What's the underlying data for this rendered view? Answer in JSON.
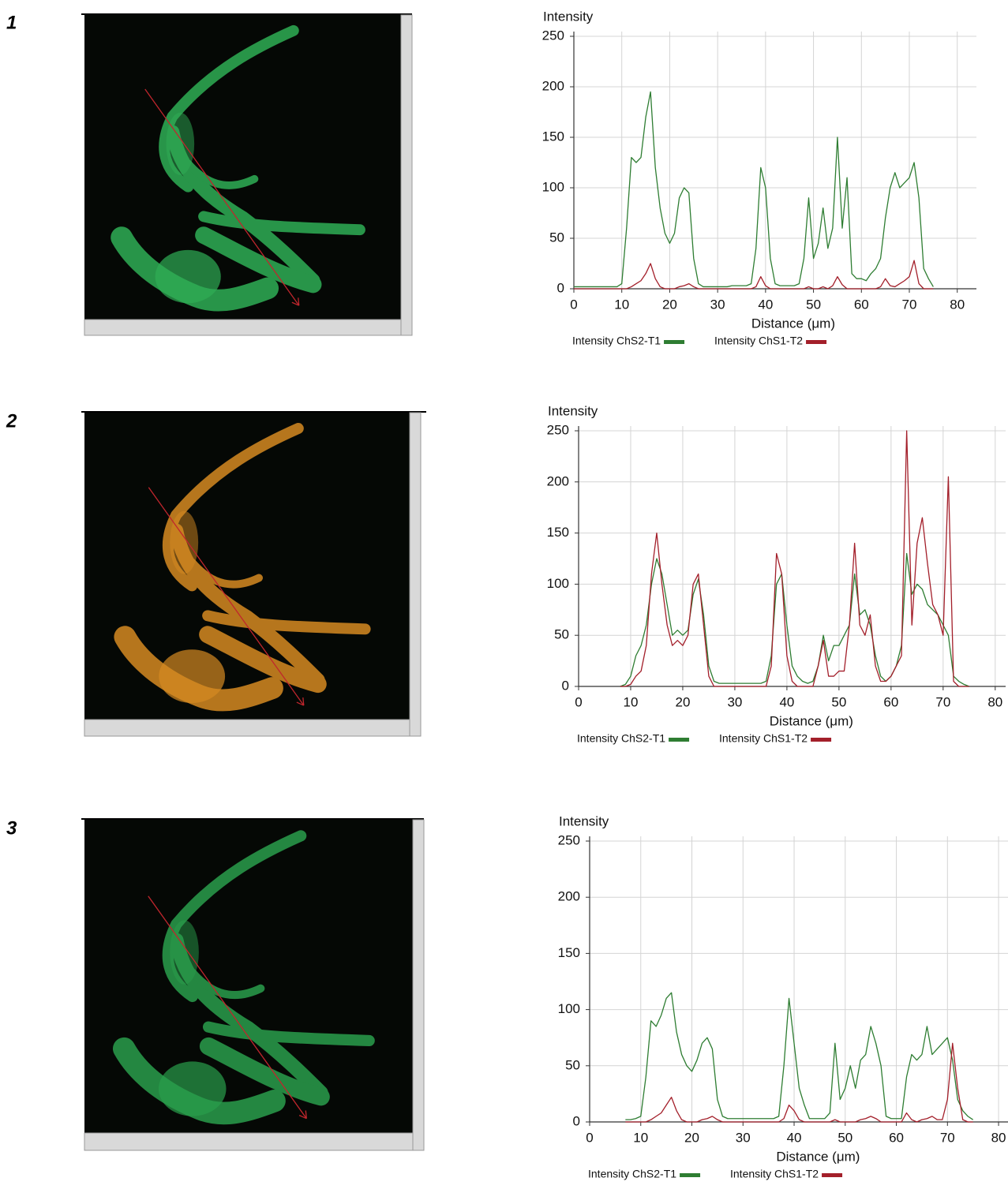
{
  "chart_data": [
    {
      "type": "line",
      "panel": "1",
      "ylabel": "Intensity",
      "xlabel": "Distance (μm)",
      "grid": true,
      "xlim": [
        0,
        84
      ],
      "ylim": [
        0,
        250
      ],
      "xticks": [
        0,
        10,
        20,
        30,
        40,
        50,
        60,
        70,
        80
      ],
      "yticks": [
        0,
        50,
        100,
        150,
        200,
        250
      ],
      "x": [
        0,
        1,
        2,
        3,
        4,
        5,
        6,
        7,
        8,
        9,
        10,
        11,
        12,
        13,
        14,
        15,
        16,
        17,
        18,
        19,
        20,
        21,
        22,
        23,
        24,
        25,
        26,
        27,
        28,
        29,
        30,
        31,
        32,
        33,
        34,
        35,
        36,
        37,
        38,
        39,
        40,
        41,
        42,
        43,
        44,
        45,
        46,
        47,
        48,
        49,
        50,
        51,
        52,
        53,
        54,
        55,
        56,
        57,
        58,
        59,
        60,
        61,
        62,
        63,
        64,
        65,
        66,
        67,
        68,
        69,
        70,
        71,
        72,
        73,
        74,
        75
      ],
      "series": [
        {
          "name": "Intensity ChS2-T1",
          "color": "#2e7d32",
          "values": [
            2,
            2,
            2,
            2,
            2,
            2,
            2,
            2,
            2,
            2,
            5,
            60,
            130,
            125,
            130,
            170,
            195,
            120,
            80,
            55,
            45,
            55,
            90,
            100,
            95,
            30,
            5,
            2,
            2,
            2,
            2,
            2,
            2,
            3,
            3,
            3,
            3,
            5,
            40,
            120,
            100,
            30,
            5,
            3,
            3,
            3,
            3,
            5,
            30,
            90,
            30,
            45,
            80,
            40,
            60,
            150,
            60,
            110,
            15,
            10,
            10,
            8,
            15,
            20,
            30,
            70,
            100,
            115,
            100,
            105,
            110,
            125,
            90,
            20,
            10,
            2
          ]
        },
        {
          "name": "Intensity ChS1-T2",
          "color": "#a31f2a",
          "values": [
            0,
            0,
            0,
            0,
            0,
            0,
            0,
            0,
            0,
            0,
            0,
            0,
            2,
            5,
            8,
            15,
            25,
            10,
            2,
            0,
            0,
            0,
            2,
            3,
            5,
            2,
            0,
            0,
            0,
            0,
            0,
            0,
            0,
            0,
            0,
            0,
            0,
            0,
            2,
            12,
            3,
            0,
            0,
            0,
            0,
            0,
            0,
            0,
            0,
            2,
            0,
            0,
            2,
            0,
            3,
            12,
            4,
            0,
            0,
            0,
            0,
            0,
            0,
            0,
            2,
            10,
            3,
            2,
            5,
            8,
            12,
            28,
            5,
            0,
            0,
            0
          ]
        }
      ]
    },
    {
      "type": "line",
      "panel": "2",
      "ylabel": "Intensity",
      "xlabel": "Distance (μm)",
      "grid": true,
      "xlim": [
        0,
        82
      ],
      "ylim": [
        0,
        250
      ],
      "xticks": [
        0,
        10,
        20,
        30,
        40,
        50,
        60,
        70,
        80
      ],
      "yticks": [
        0,
        50,
        100,
        150,
        200,
        250
      ],
      "x": [
        8,
        9,
        10,
        11,
        12,
        13,
        14,
        15,
        16,
        17,
        18,
        19,
        20,
        21,
        22,
        23,
        24,
        25,
        26,
        27,
        28,
        29,
        30,
        31,
        32,
        33,
        34,
        35,
        36,
        37,
        38,
        39,
        40,
        41,
        42,
        43,
        44,
        45,
        46,
        47,
        48,
        49,
        50,
        51,
        52,
        53,
        54,
        55,
        56,
        57,
        58,
        59,
        60,
        61,
        62,
        63,
        64,
        65,
        66,
        67,
        68,
        69,
        70,
        71,
        72,
        73,
        74,
        75
      ],
      "series": [
        {
          "name": "Intensity ChS2-T1",
          "color": "#2e7d32",
          "values": [
            0,
            2,
            10,
            30,
            40,
            60,
            100,
            125,
            110,
            80,
            50,
            55,
            50,
            55,
            90,
            105,
            70,
            20,
            5,
            3,
            3,
            3,
            3,
            3,
            3,
            3,
            3,
            3,
            5,
            30,
            100,
            110,
            60,
            20,
            10,
            5,
            3,
            5,
            20,
            50,
            25,
            40,
            40,
            50,
            60,
            110,
            70,
            75,
            60,
            30,
            10,
            5,
            10,
            20,
            40,
            130,
            90,
            100,
            95,
            80,
            75,
            70,
            60,
            50,
            10,
            5,
            2,
            0
          ]
        },
        {
          "name": "Intensity ChS1-T2",
          "color": "#a31f2a",
          "values": [
            0,
            0,
            2,
            10,
            15,
            40,
            110,
            150,
            100,
            60,
            40,
            45,
            40,
            50,
            100,
            110,
            60,
            10,
            0,
            0,
            0,
            0,
            0,
            0,
            0,
            0,
            0,
            0,
            0,
            20,
            130,
            110,
            30,
            5,
            0,
            0,
            0,
            0,
            20,
            45,
            10,
            10,
            15,
            15,
            60,
            140,
            60,
            50,
            70,
            20,
            5,
            5,
            10,
            20,
            30,
            250,
            60,
            140,
            165,
            120,
            80,
            70,
            50,
            205,
            5,
            0,
            0,
            0
          ]
        }
      ]
    },
    {
      "type": "line",
      "panel": "3",
      "ylabel": "Intensity",
      "xlabel": "Distance (μm)",
      "grid": true,
      "xlim": [
        0,
        82
      ],
      "ylim": [
        0,
        250
      ],
      "xticks": [
        0,
        10,
        20,
        30,
        40,
        50,
        60,
        70,
        80
      ],
      "yticks": [
        0,
        50,
        100,
        150,
        200,
        250
      ],
      "x": [
        7,
        8,
        9,
        10,
        11,
        12,
        13,
        14,
        15,
        16,
        17,
        18,
        19,
        20,
        21,
        22,
        23,
        24,
        25,
        26,
        27,
        28,
        29,
        30,
        31,
        32,
        33,
        34,
        35,
        36,
        37,
        38,
        39,
        40,
        41,
        42,
        43,
        44,
        45,
        46,
        47,
        48,
        49,
        50,
        51,
        52,
        53,
        54,
        55,
        56,
        57,
        58,
        59,
        60,
        61,
        62,
        63,
        64,
        65,
        66,
        67,
        68,
        69,
        70,
        71,
        72,
        73,
        74,
        75
      ],
      "series": [
        {
          "name": "Intensity ChS2-T1",
          "color": "#2e7d32",
          "values": [
            2,
            2,
            3,
            5,
            40,
            90,
            85,
            95,
            110,
            115,
            80,
            60,
            50,
            45,
            55,
            70,
            75,
            65,
            20,
            5,
            3,
            3,
            3,
            3,
            3,
            3,
            3,
            3,
            3,
            3,
            5,
            50,
            110,
            70,
            30,
            15,
            3,
            3,
            3,
            3,
            8,
            70,
            20,
            30,
            50,
            30,
            55,
            60,
            85,
            70,
            50,
            5,
            3,
            3,
            3,
            40,
            60,
            55,
            60,
            85,
            60,
            65,
            70,
            75,
            55,
            20,
            10,
            5,
            2
          ]
        },
        {
          "name": "Intensity ChS1-T2",
          "color": "#a31f2a",
          "values": [
            0,
            0,
            0,
            0,
            0,
            2,
            5,
            8,
            15,
            22,
            10,
            2,
            0,
            0,
            0,
            2,
            3,
            5,
            2,
            0,
            0,
            0,
            0,
            0,
            0,
            0,
            0,
            0,
            0,
            0,
            0,
            3,
            15,
            10,
            2,
            0,
            0,
            0,
            0,
            0,
            0,
            2,
            0,
            0,
            0,
            0,
            2,
            3,
            5,
            3,
            0,
            0,
            0,
            0,
            0,
            8,
            2,
            0,
            2,
            3,
            5,
            2,
            2,
            20,
            70,
            30,
            2,
            0,
            0
          ]
        }
      ]
    }
  ]
}
